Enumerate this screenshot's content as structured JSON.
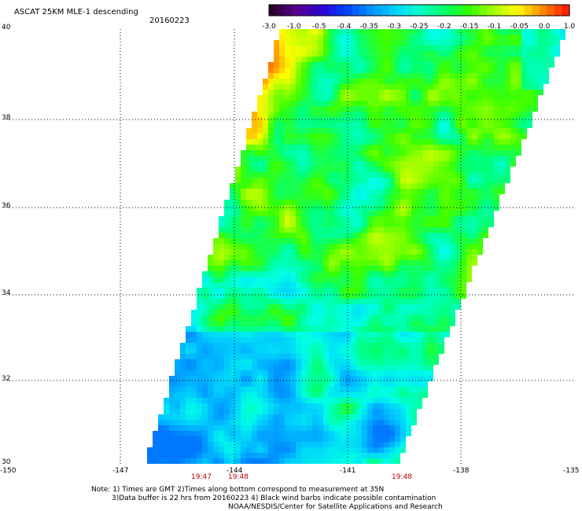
{
  "header": {
    "title": "ASCAT 25KM MLE-1 descending",
    "date": "20160223"
  },
  "colorbar": {
    "labels": [
      "-3.0",
      "-1.0",
      "-0.5",
      "-0.4",
      "-0.35",
      "-0.3",
      "-0.25",
      "-0.2",
      "-0.15",
      "-0.1",
      "-0.05",
      "0.0",
      "1.0"
    ],
    "colors": [
      "#2a0030",
      "#5a0090",
      "#2a00d0",
      "#0040ff",
      "#0090ff",
      "#00d0ff",
      "#00ffd0",
      "#00ff70",
      "#30ff00",
      "#a0ff00",
      "#ffff00",
      "#ff9000",
      "#ff2000"
    ]
  },
  "map": {
    "lon_labels": [
      "-150",
      "-147",
      "-144",
      "-141",
      "-138",
      "-135"
    ],
    "lat_labels": [
      "40",
      "38",
      "36",
      "34",
      "32",
      "30"
    ],
    "time_labels": [
      "19:47",
      "19:48",
      "19:48"
    ]
  },
  "notes": {
    "line1": "Note: 1) Times are GMT 2)Times along bottom correspond to measurement at 35N",
    "line2": "3)Data buffer is 22 hrs from 20160223 4) Black wind barbs indicate possible contamination",
    "line3": "NOAA/NESDIS/Center for Satellite Applications and Research"
  }
}
